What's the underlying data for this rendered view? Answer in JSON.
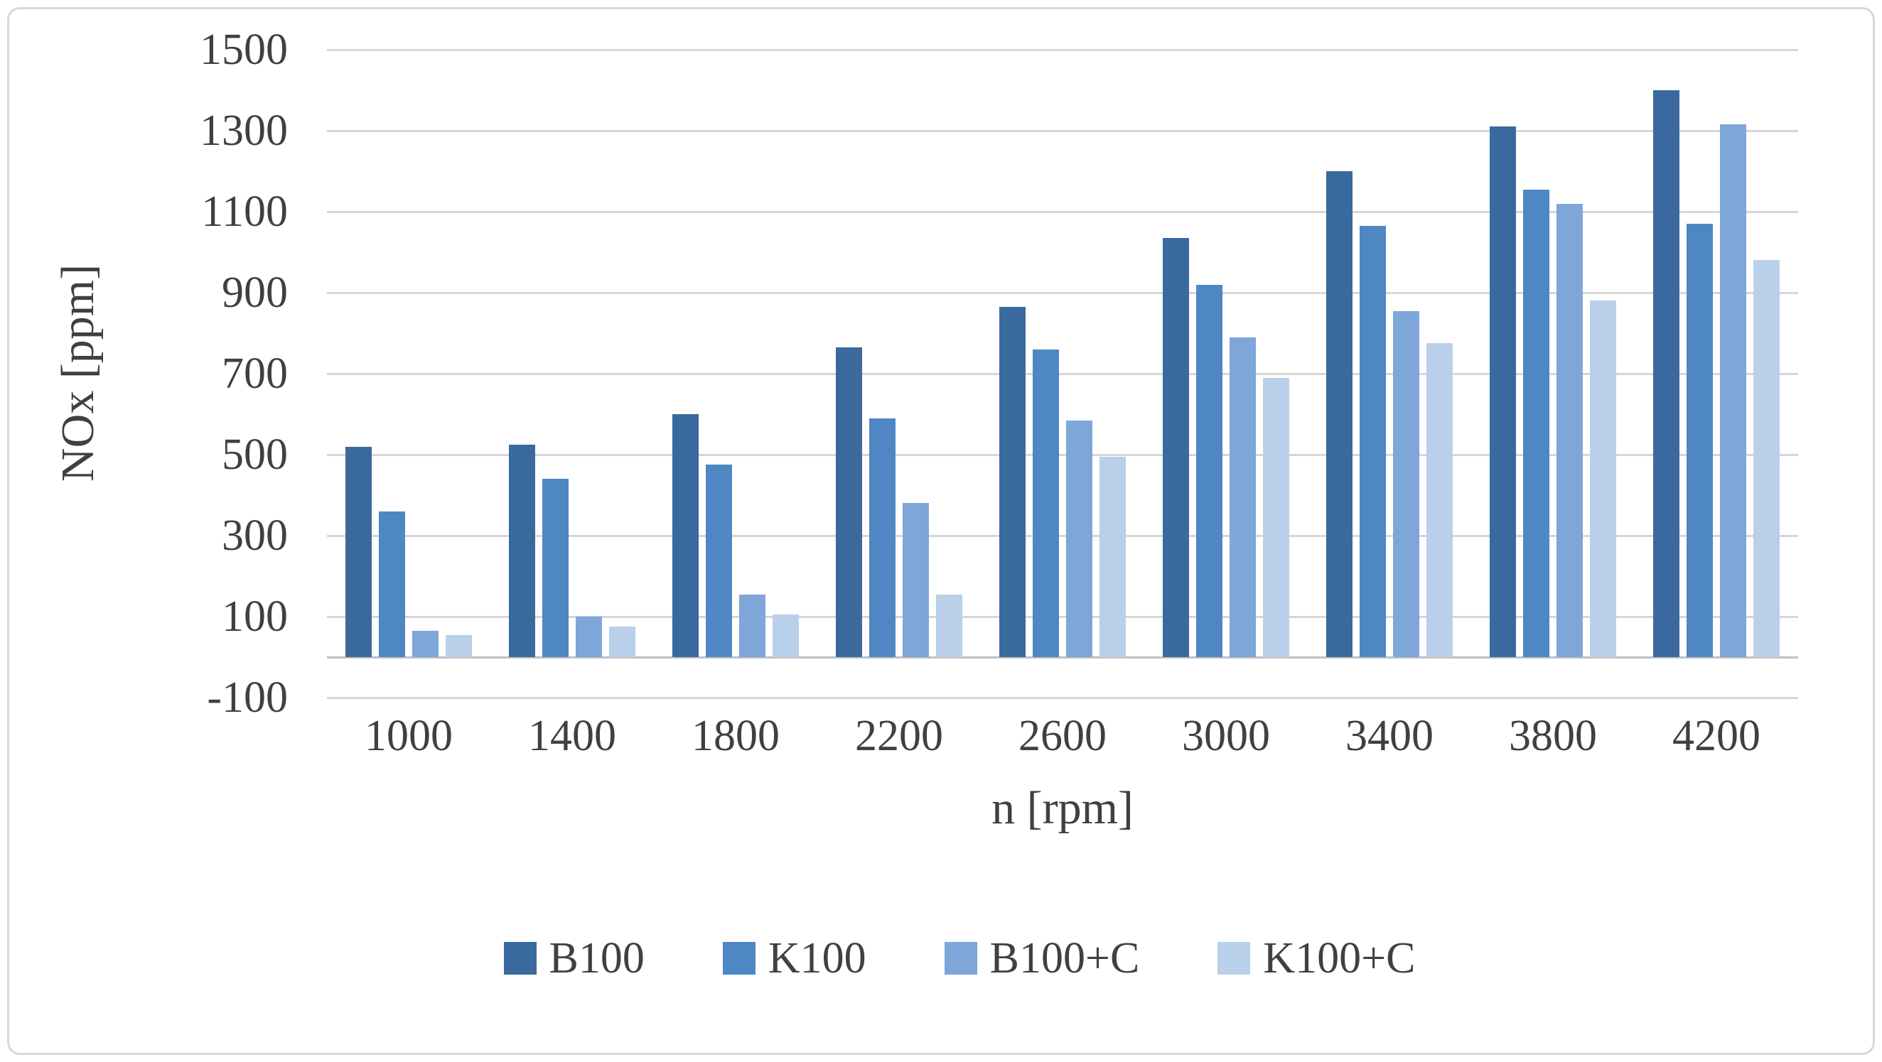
{
  "chart_data": {
    "type": "bar",
    "title": "",
    "xlabel": "n [rpm]",
    "ylabel": "NOx [ppm]",
    "categories": [
      "1000",
      "1400",
      "1800",
      "2200",
      "2600",
      "3000",
      "3400",
      "3800",
      "4200"
    ],
    "series": [
      {
        "name": "B100",
        "color": "#3a6a9d",
        "values": [
          520,
          525,
          600,
          765,
          865,
          1035,
          1200,
          1310,
          1400
        ]
      },
      {
        "name": "K100",
        "color": "#4e87c4",
        "values": [
          360,
          440,
          475,
          590,
          760,
          920,
          1065,
          1155,
          1070
        ]
      },
      {
        "name": "B100+C",
        "color": "#7ea6d9",
        "values": [
          65,
          100,
          155,
          380,
          585,
          790,
          855,
          1120,
          1315
        ]
      },
      {
        "name": "K100+C",
        "color": "#bacfea",
        "values": [
          55,
          75,
          105,
          155,
          495,
          690,
          775,
          880,
          980
        ]
      }
    ],
    "ylim": [
      -100,
      1500
    ],
    "ytick_step": 200,
    "yticks": [
      1500,
      1300,
      1100,
      900,
      700,
      500,
      300,
      100,
      -100
    ],
    "grid": true,
    "legend_position": "bottom"
  },
  "style_colors": {
    "gridline": "#d6d6d6",
    "zero_axis_line": "#c0c0c0",
    "frame_border": "#d8d8d8",
    "text": "#404040",
    "background": "#ffffff"
  }
}
